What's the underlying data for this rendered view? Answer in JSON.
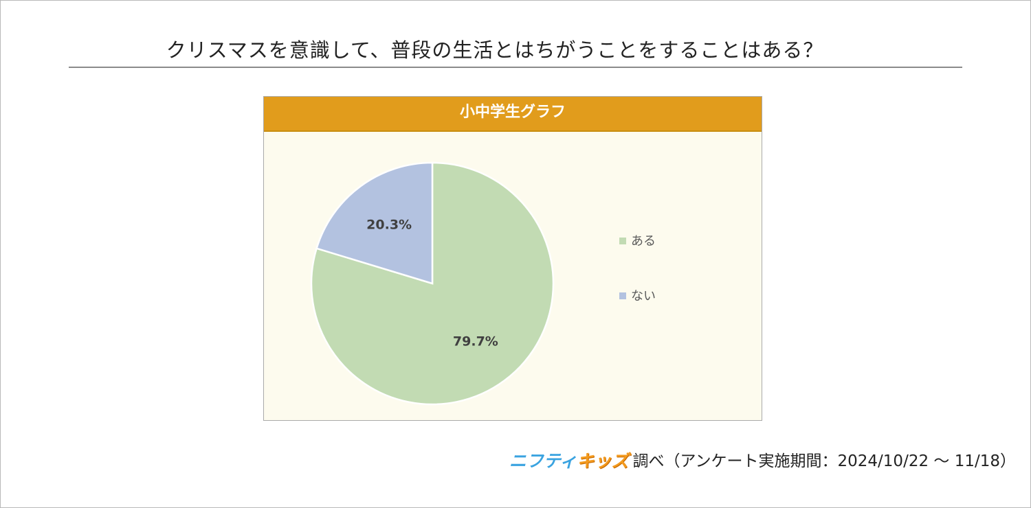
{
  "page": {
    "title": "クリスマスを意識して、普段の生活とはちがうことをすることはある？"
  },
  "colors": {
    "header_bg": "#e19c1c",
    "panel_bg": "#fdfbee",
    "slice_yes": "#c2dbb3",
    "slice_no": "#b3c2e0"
  },
  "chart_data": {
    "type": "pie",
    "title": "小中学生グラフ",
    "start_angle_deg": 0,
    "direction": "clockwise",
    "slices": [
      {
        "label": "ある",
        "value": 79.7,
        "display": "79.7%",
        "color": "#c2dbb3"
      },
      {
        "label": "ない",
        "value": 20.3,
        "display": "20.3%",
        "color": "#b3c2e0"
      }
    ],
    "legend_position": "right"
  },
  "footer": {
    "brand_part1": "ニフティ",
    "brand_part2": "キッズ",
    "text": "調べ（アンケート実施期間：2024/10/22 ～ 11/18）"
  }
}
